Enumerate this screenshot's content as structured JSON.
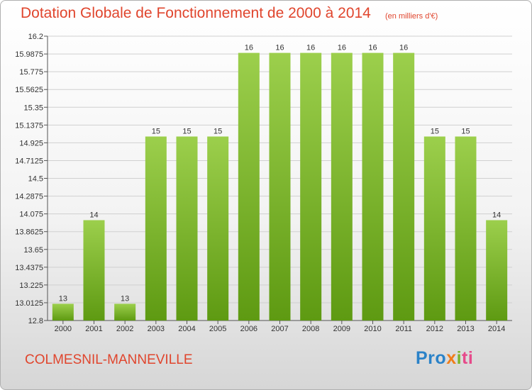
{
  "chart_data": {
    "type": "bar",
    "title": "Dotation Globale de Fonctionnement de 2000 à 2014",
    "subtitle": "(en milliers d'€)",
    "categories": [
      "2000",
      "2001",
      "2002",
      "2003",
      "2004",
      "2005",
      "2006",
      "2007",
      "2008",
      "2009",
      "2010",
      "2011",
      "2012",
      "2013",
      "2014"
    ],
    "values": [
      13,
      14,
      13,
      15,
      15,
      15,
      16,
      16,
      16,
      16,
      16,
      16,
      15,
      15,
      14
    ],
    "bar_plot_values": [
      13.0,
      14.0,
      13.0,
      15.0,
      15.0,
      15.0,
      16.0,
      16.0,
      16.0,
      16.0,
      16.0,
      16.0,
      15.0,
      15.0,
      14.0
    ],
    "data_labels": [
      "13",
      "14",
      "13",
      "15",
      "15",
      "15",
      "16",
      "16",
      "16",
      "16",
      "16",
      "16",
      "15",
      "15",
      "14"
    ],
    "yticks": [
      "12.8",
      "13.0125",
      "13.225",
      "13.4375",
      "13.65",
      "13.8625",
      "14.075",
      "14.2875",
      "14.5",
      "14.7125",
      "14.925",
      "15.1375",
      "15.35",
      "15.5625",
      "15.775",
      "15.9875",
      "16.2"
    ],
    "ylim": [
      12.8,
      16.2
    ],
    "grid": true,
    "bar_color_top": "#9ccf4c",
    "bar_color_bottom": "#5e9a12"
  },
  "footer": {
    "commune": "COLMESNIL-MANNEVILLE",
    "logo": {
      "p1": "Pro",
      "p2": "x",
      "p3": "i",
      "p4": "ti"
    }
  }
}
